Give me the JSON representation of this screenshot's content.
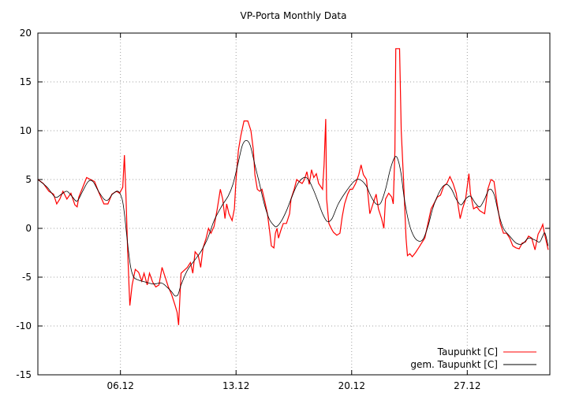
{
  "chart_data": {
    "type": "line",
    "title": "VP-Porta Monthly Data",
    "xlabel": "",
    "ylabel": "",
    "xlim": [
      0,
      31
    ],
    "ylim": [
      -15,
      20
    ],
    "x_unit": "days since 01.12",
    "x_ticks": [
      {
        "value": 5,
        "label": "06.12"
      },
      {
        "value": 12,
        "label": "13.12"
      },
      {
        "value": 19,
        "label": "20.12"
      },
      {
        "value": 26,
        "label": "27.12"
      }
    ],
    "y_ticks": [
      -15,
      -10,
      -5,
      0,
      5,
      10,
      15,
      20
    ],
    "grid": true,
    "legend_position": "bottom-right",
    "series": [
      {
        "name": "Taupunkt [C]",
        "color": "#ff0000",
        "x": [
          0,
          0.33,
          0.67,
          0.95,
          1.14,
          1.33,
          1.52,
          1.76,
          2.0,
          2.24,
          2.38,
          2.48,
          2.67,
          2.95,
          3.19,
          3.43,
          3.71,
          4.0,
          4.24,
          4.48,
          4.76,
          4.95,
          5.14,
          5.24,
          5.33,
          5.43,
          5.52,
          5.57,
          5.71,
          5.9,
          6.1,
          6.29,
          6.43,
          6.62,
          6.76,
          6.95,
          7.14,
          7.33,
          7.52,
          7.71,
          7.9,
          8.1,
          8.29,
          8.43,
          8.52,
          8.67,
          8.86,
          9.05,
          9.24,
          9.38,
          9.52,
          9.71,
          9.86,
          10.0,
          10.19,
          10.33,
          10.48,
          10.67,
          10.86,
          11.05,
          11.19,
          11.33,
          11.43,
          11.57,
          11.76,
          11.9,
          12.0,
          12.14,
          12.29,
          12.48,
          12.71,
          12.9,
          13.05,
          13.14,
          13.29,
          13.43,
          13.57,
          13.71,
          13.9,
          14.05,
          14.14,
          14.29,
          14.38,
          14.48,
          14.57,
          14.71,
          14.86,
          15.05,
          15.24,
          15.33,
          15.52,
          15.67,
          15.81,
          16.0,
          16.14,
          16.29,
          16.43,
          16.57,
          16.71,
          16.86,
          17.0,
          17.24,
          17.33,
          17.43,
          17.48,
          17.62,
          17.76,
          17.9,
          18.1,
          18.29,
          18.43,
          18.57,
          18.76,
          18.9,
          19.05,
          19.24,
          19.43,
          19.57,
          19.71,
          19.9,
          20.1,
          20.29,
          20.48,
          20.62,
          20.81,
          20.95,
          21.05,
          21.24,
          21.43,
          21.52,
          21.62,
          21.67,
          21.9,
          22.0,
          22.14,
          22.29,
          22.38,
          22.52,
          22.67,
          22.86,
          23.05,
          23.24,
          23.43,
          23.62,
          23.81,
          24.0,
          24.19,
          24.38,
          24.57,
          24.76,
          24.95,
          25.14,
          25.33,
          25.57,
          25.71,
          25.9,
          26.1,
          26.19,
          26.38,
          26.57,
          26.76,
          27.05,
          27.24,
          27.43,
          27.62,
          27.81,
          28.0,
          28.19,
          28.38,
          28.57,
          28.76,
          28.95,
          29.14,
          29.33,
          29.52,
          29.71,
          29.9,
          30.1,
          30.29,
          30.48,
          30.57,
          30.67,
          30.9
        ],
        "y": [
          5.0,
          4.6,
          3.8,
          3.5,
          2.5,
          3.0,
          3.8,
          3.0,
          3.6,
          2.4,
          2.2,
          3.2,
          4.0,
          5.2,
          5.0,
          4.8,
          3.6,
          2.5,
          2.5,
          3.5,
          3.8,
          3.6,
          4.2,
          7.5,
          3.5,
          -2,
          -6,
          -7.9,
          -5.8,
          -4.2,
          -4.5,
          -5.4,
          -4.6,
          -5.8,
          -4.6,
          -5.5,
          -6.0,
          -5.8,
          -4.0,
          -5.0,
          -6.0,
          -6.8,
          -7.8,
          -8.6,
          -9.9,
          -4.6,
          -4.3,
          -4.0,
          -3.5,
          -4.6,
          -2.4,
          -2.8,
          -4.0,
          -2.0,
          -1.0,
          0,
          -0.5,
          0.2,
          2.0,
          4.0,
          3.0,
          1.0,
          2.5,
          1.5,
          0.8,
          2.0,
          5.0,
          8.0,
          9.5,
          11.0,
          11.0,
          10.0,
          8.0,
          5.5,
          4.0,
          3.8,
          4.0,
          3.0,
          1.5,
          -0.5,
          -1.8,
          -2.0,
          -0.5,
          0,
          -1,
          -0.2,
          0.5,
          0.5,
          1.5,
          3.0,
          4.0,
          5.0,
          4.8,
          4.6,
          5.0,
          5.8,
          4.5,
          6.0,
          5.2,
          5.6,
          4.6,
          4.0,
          6.5,
          11.2,
          3.0,
          0.5,
          0,
          -0.4,
          -0.7,
          -0.5,
          1.2,
          2.5,
          3.5,
          4.0,
          4.0,
          4.6,
          5.5,
          6.5,
          5.5,
          5.0,
          1.5,
          2.5,
          3.5,
          2.0,
          1.0,
          0,
          3.0,
          3.6,
          3.2,
          2.5,
          8.0,
          18.4,
          18.4,
          10,
          5,
          -1,
          -2.8,
          -2.6,
          -2.9,
          -2.5,
          -2.0,
          -1.5,
          -1.0,
          0.5,
          2.0,
          2.6,
          3.2,
          3.4,
          4.3,
          4.6,
          5.3,
          4.6,
          3.6,
          1.0,
          2.0,
          3.0,
          5.6,
          3.6,
          2.0,
          2.2,
          1.8,
          1.5,
          4.0,
          5.0,
          4.8,
          2.5,
          0.5,
          -0.5,
          -0.5,
          -1.0,
          -1.8,
          -2.0,
          -2.1,
          -1.5,
          -1.4,
          -0.8,
          -1.0,
          -2.2,
          -0.6,
          0,
          0.4,
          -0.5,
          -2.2
        ]
      },
      {
        "name": "gem. Taupunkt [C]",
        "color": "#000000",
        "x": [
          0,
          0.57,
          1.05,
          1.43,
          1.76,
          2.1,
          2.38,
          2.71,
          3.05,
          3.33,
          3.67,
          4.0,
          4.24,
          4.52,
          4.86,
          5.1,
          5.24,
          5.43,
          5.62,
          5.81,
          6.1,
          6.52,
          7.0,
          7.48,
          7.81,
          8.1,
          8.29,
          8.48,
          8.67,
          9.05,
          9.52,
          9.9,
          10.29,
          10.67,
          11.14,
          11.52,
          11.81,
          12.1,
          12.38,
          12.62,
          12.86,
          13.14,
          13.43,
          13.71,
          14.0,
          14.29,
          14.48,
          14.76,
          15.05,
          15.33,
          15.71,
          16.1,
          16.38,
          16.67,
          16.95,
          17.24,
          17.52,
          17.81,
          18.19,
          18.67,
          19.14,
          19.48,
          19.86,
          20.19,
          20.48,
          20.76,
          21.05,
          21.33,
          21.62,
          21.81,
          22.0,
          22.19,
          22.48,
          22.76,
          23.05,
          23.33,
          23.62,
          23.9,
          24.19,
          24.48,
          24.76,
          25.05,
          25.33,
          25.62,
          25.9,
          26.19,
          26.48,
          26.76,
          27.05,
          27.33,
          27.62,
          27.9,
          28.19,
          28.57,
          28.95,
          29.33,
          29.71,
          30.1,
          30.38,
          30.57,
          30.71,
          30.9
        ],
        "y": [
          5.0,
          4.2,
          3.2,
          3.5,
          3.8,
          3.2,
          2.8,
          3.8,
          4.8,
          4.8,
          3.8,
          3.0,
          2.9,
          3.5,
          3.8,
          3.0,
          1.5,
          -1.5,
          -4.0,
          -5.0,
          -5.3,
          -5.5,
          -5.7,
          -5.6,
          -6.0,
          -6.5,
          -6.9,
          -6.8,
          -5.8,
          -4.3,
          -3.2,
          -2.3,
          -1.0,
          0.8,
          2.3,
          3.3,
          4.5,
          6.5,
          8.5,
          9.0,
          8.5,
          6.5,
          4.5,
          2.5,
          1.0,
          0.3,
          0.2,
          0.8,
          1.8,
          3.0,
          4.5,
          5.2,
          5.0,
          4.0,
          2.8,
          1.5,
          0.7,
          1.0,
          2.5,
          3.8,
          4.8,
          5.0,
          4.4,
          3.2,
          2.5,
          2.6,
          4.0,
          6.0,
          7.3,
          7.0,
          5.5,
          3.0,
          0.5,
          -0.8,
          -1.3,
          -1.1,
          0.2,
          2.0,
          3.3,
          4.2,
          4.5,
          4.0,
          3.0,
          2.4,
          3.0,
          3.3,
          2.6,
          2.2,
          3.0,
          4.0,
          3.5,
          1.5,
          0,
          -0.8,
          -1.5,
          -1.6,
          -1.0,
          -1.2,
          -1.4,
          -0.8,
          -0.5,
          -1.8
        ]
      }
    ]
  }
}
